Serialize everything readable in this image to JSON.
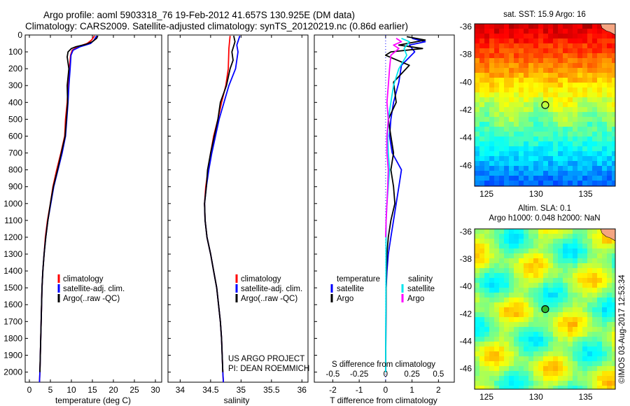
{
  "header": {
    "line1": "Argo profile: aoml 5903318_76 19-Feb-2012 41.657S 130.925E (DM data)",
    "line2": "Climatology: CARS2009. Satellite-adjusted climatology: synTS_20120219.nc (0.86d earlier)"
  },
  "colors": {
    "climatology": "#ff0000",
    "satellite": "#0000ff",
    "argo": "#000000",
    "argo_salinity": "#ff00ff",
    "satellite_salinity": "#00e5ee"
  },
  "legend_profile": {
    "climatology": "climatology",
    "satellite": "satellite-adj. clim.",
    "argo": "Argo(..raw -QC)"
  },
  "legend_diff": {
    "t_head": "temperature",
    "s_head": "salinity",
    "t_sat": "satellite",
    "t_argo": "Argo",
    "s_sat": "satellite",
    "s_argo": "Argo"
  },
  "credits": {
    "project": "US ARGO PROJECT",
    "pi": "PI: DEAN ROEMMICH",
    "stamp": "©IMOS 03-Aug-2017 12:53:34"
  },
  "map_sst": {
    "title": "sat. SST: 15.9 Argo: 16",
    "icon": "sst-heatmap"
  },
  "map_sla": {
    "title1": "Altim. SLA: 0.1",
    "title2": "Argo h1000: 0.048 h2000: NaN",
    "icon": "sla-heatmap"
  },
  "chart_data": [
    {
      "id": "temperature",
      "type": "line",
      "xlabel": "temperature (deg C)",
      "xticks": [
        0,
        5,
        10,
        15,
        20,
        25,
        30
      ],
      "xlim": [
        -1,
        31.5
      ],
      "yticks": [
        0,
        100,
        200,
        300,
        400,
        500,
        600,
        700,
        800,
        900,
        1000,
        1100,
        1200,
        1300,
        1400,
        1500,
        1600,
        1700,
        1800,
        1900,
        2000
      ],
      "ylim": [
        0,
        2060
      ],
      "y_inverted": true,
      "series": [
        {
          "name": "climatology",
          "color": "#ff0000",
          "points": [
            [
              15.5,
              5
            ],
            [
              14.8,
              30
            ],
            [
              13.8,
              50
            ],
            [
              11.5,
              70
            ],
            [
              10.2,
              90
            ],
            [
              9.8,
              120
            ],
            [
              9.5,
              200
            ],
            [
              9.2,
              300
            ],
            [
              9.0,
              400
            ],
            [
              8.6,
              500
            ],
            [
              8.4,
              600
            ],
            [
              7.5,
              700
            ],
            [
              6.5,
              800
            ],
            [
              5.6,
              900
            ],
            [
              5.0,
              1000
            ],
            [
              4.3,
              1100
            ],
            [
              3.8,
              1200
            ],
            [
              3.5,
              1300
            ],
            [
              3.2,
              1400
            ],
            [
              3.0,
              1500
            ],
            [
              2.9,
              1600
            ],
            [
              2.8,
              1700
            ],
            [
              2.7,
              1800
            ],
            [
              2.6,
              1900
            ],
            [
              2.5,
              2000
            ],
            [
              2.4,
              2060
            ]
          ]
        },
        {
          "name": "satellite-adj. clim.",
          "color": "#0000ff",
          "points": [
            [
              16.0,
              5
            ],
            [
              15.4,
              30
            ],
            [
              14.6,
              50
            ],
            [
              12.0,
              70
            ],
            [
              10.4,
              90
            ],
            [
              9.9,
              120
            ],
            [
              9.7,
              200
            ],
            [
              9.4,
              300
            ],
            [
              9.2,
              400
            ],
            [
              8.9,
              500
            ],
            [
              8.6,
              600
            ],
            [
              7.8,
              700
            ],
            [
              6.8,
              800
            ],
            [
              5.8,
              900
            ],
            [
              5.1,
              1000
            ],
            [
              4.4,
              1100
            ],
            [
              3.9,
              1200
            ],
            [
              3.5,
              1300
            ],
            [
              3.2,
              1400
            ],
            [
              3.0,
              1500
            ],
            [
              2.9,
              1600
            ],
            [
              2.8,
              1700
            ],
            [
              2.7,
              1800
            ],
            [
              2.6,
              1900
            ],
            [
              2.5,
              2000
            ],
            [
              2.4,
              2060
            ]
          ]
        },
        {
          "name": "Argo(..raw -QC)",
          "color": "#000000",
          "points": [
            [
              16.3,
              5
            ],
            [
              16.0,
              20
            ],
            [
              15.0,
              40
            ],
            [
              13.5,
              55
            ],
            [
              11.0,
              70
            ],
            [
              10.0,
              80
            ],
            [
              9.2,
              100
            ],
            [
              9.0,
              130
            ],
            [
              9.4,
              200
            ],
            [
              9.0,
              300
            ],
            [
              9.1,
              400
            ],
            [
              8.8,
              500
            ],
            [
              8.5,
              600
            ],
            [
              7.6,
              700
            ],
            [
              6.7,
              800
            ],
            [
              5.7,
              900
            ],
            [
              5.0,
              1000
            ],
            [
              4.4,
              1100
            ],
            [
              3.9,
              1200
            ],
            [
              3.5,
              1300
            ],
            [
              3.2,
              1400
            ],
            [
              3.0,
              1500
            ],
            [
              2.9,
              1600
            ],
            [
              2.8,
              1700
            ],
            [
              2.7,
              1800
            ],
            [
              2.6,
              1900
            ],
            [
              2.5,
              2000
            ]
          ]
        }
      ]
    },
    {
      "id": "salinity",
      "type": "line",
      "xlabel": "salinity",
      "xticks": [
        34,
        34.5,
        35,
        35.5,
        36
      ],
      "xlim": [
        33.8,
        36.1
      ],
      "ylim": [
        0,
        2060
      ],
      "y_inverted": true,
      "series": [
        {
          "name": "climatology",
          "color": "#ff0000",
          "points": [
            [
              34.82,
              5
            ],
            [
              34.8,
              80
            ],
            [
              34.79,
              200
            ],
            [
              34.75,
              300
            ],
            [
              34.68,
              400
            ],
            [
              34.62,
              500
            ],
            [
              34.55,
              600
            ],
            [
              34.5,
              700
            ],
            [
              34.46,
              800
            ],
            [
              34.42,
              900
            ],
            [
              34.4,
              1000
            ],
            [
              34.41,
              1100
            ],
            [
              34.44,
              1200
            ],
            [
              34.5,
              1300
            ],
            [
              34.55,
              1400
            ],
            [
              34.6,
              1500
            ],
            [
              34.63,
              1600
            ],
            [
              34.66,
              1700
            ],
            [
              34.68,
              1800
            ],
            [
              34.69,
              1900
            ],
            [
              34.7,
              2000
            ],
            [
              34.71,
              2060
            ]
          ]
        },
        {
          "name": "satellite-adj. clim.",
          "color": "#0000ff",
          "points": [
            [
              34.98,
              5
            ],
            [
              34.93,
              60
            ],
            [
              34.95,
              100
            ],
            [
              34.91,
              200
            ],
            [
              34.8,
              300
            ],
            [
              34.72,
              400
            ],
            [
              34.64,
              500
            ],
            [
              34.58,
              600
            ],
            [
              34.52,
              700
            ],
            [
              34.47,
              800
            ],
            [
              34.43,
              900
            ],
            [
              34.4,
              1000
            ],
            [
              34.41,
              1100
            ],
            [
              34.44,
              1200
            ],
            [
              34.5,
              1300
            ],
            [
              34.55,
              1400
            ],
            [
              34.6,
              1500
            ],
            [
              34.63,
              1600
            ],
            [
              34.66,
              1700
            ],
            [
              34.68,
              1800
            ],
            [
              34.69,
              1900
            ],
            [
              34.7,
              2000
            ],
            [
              34.71,
              2060
            ]
          ]
        },
        {
          "name": "Argo(..raw -QC)",
          "color": "#000000",
          "points": [
            [
              34.88,
              5
            ],
            [
              34.9,
              40
            ],
            [
              34.85,
              100
            ],
            [
              34.87,
              150
            ],
            [
              34.82,
              200
            ],
            [
              34.76,
              300
            ],
            [
              34.66,
              400
            ],
            [
              34.62,
              500
            ],
            [
              34.56,
              600
            ],
            [
              34.5,
              700
            ],
            [
              34.45,
              800
            ],
            [
              34.43,
              900
            ],
            [
              34.4,
              1000
            ],
            [
              34.41,
              1100
            ],
            [
              34.44,
              1200
            ],
            [
              34.5,
              1300
            ],
            [
              34.55,
              1400
            ],
            [
              34.6,
              1500
            ],
            [
              34.63,
              1600
            ],
            [
              34.66,
              1700
            ],
            [
              34.68,
              1800
            ],
            [
              34.69,
              1900
            ],
            [
              34.7,
              2000
            ]
          ]
        }
      ]
    },
    {
      "id": "difference",
      "type": "line",
      "xlabel": "T difference from climatology",
      "xlabel_top": "S difference from climatology",
      "xticks": [
        -2,
        -1,
        0,
        1,
        2
      ],
      "xticks_top": [
        -0.5,
        -0.25,
        0,
        0.25,
        0.5
      ],
      "xticklabels_top": [
        "-0.5",
        "-0.25",
        "0",
        "0.25",
        "0.5"
      ],
      "xlim": [
        -2.7,
        2.6
      ],
      "ylim": [
        0,
        2060
      ],
      "y_inverted": true,
      "series": [
        {
          "name": "T satellite",
          "color": "#0000ff",
          "points": [
            [
              1.0,
              20
            ],
            [
              1.5,
              40
            ],
            [
              0.9,
              60
            ],
            [
              1.1,
              100
            ],
            [
              0.6,
              180
            ],
            [
              0.5,
              280
            ],
            [
              0.3,
              400
            ],
            [
              0.2,
              500
            ],
            [
              0.15,
              600
            ],
            [
              0.25,
              700
            ],
            [
              0.6,
              800
            ],
            [
              0.5,
              900
            ],
            [
              0.4,
              1000
            ],
            [
              0.3,
              1100
            ],
            [
              0.2,
              1200
            ],
            [
              0.1,
              1300
            ],
            [
              0.05,
              1400
            ],
            [
              0.02,
              1500
            ],
            [
              0.0,
              2000
            ]
          ]
        },
        {
          "name": "T Argo",
          "color": "#000000",
          "points": [
            [
              0.8,
              10
            ],
            [
              1.5,
              30
            ],
            [
              0.5,
              60
            ],
            [
              1.4,
              80
            ],
            [
              0.2,
              100
            ],
            [
              0.0,
              120
            ],
            [
              0.9,
              180
            ],
            [
              0.3,
              280
            ],
            [
              0.4,
              400
            ],
            [
              0.1,
              500
            ],
            [
              0.2,
              600
            ],
            [
              0.3,
              700
            ],
            [
              0.2,
              800
            ],
            [
              0.3,
              900
            ],
            [
              0.35,
              1000
            ],
            [
              0.2,
              1100
            ],
            [
              0.1,
              1200
            ],
            [
              0.05,
              1300
            ],
            [
              0.03,
              1400
            ],
            [
              0.02,
              1500
            ],
            [
              0.0,
              2000
            ]
          ]
        },
        {
          "name": "S satellite",
          "color": "#00e5ee",
          "points": [
            [
              0.6,
              20
            ],
            [
              0.9,
              40
            ],
            [
              0.7,
              80
            ],
            [
              0.8,
              120
            ],
            [
              0.5,
              200
            ],
            [
              0.3,
              300
            ],
            [
              0.2,
              400
            ],
            [
              0.1,
              500
            ],
            [
              0.08,
              600
            ],
            [
              0.1,
              700
            ],
            [
              0.15,
              800
            ],
            [
              0.1,
              900
            ],
            [
              0.05,
              1000
            ],
            [
              0.02,
              1100
            ],
            [
              0.0,
              2000
            ]
          ]
        },
        {
          "name": "S Argo",
          "color": "#ff00ff",
          "points": [
            [
              0.4,
              20
            ],
            [
              0.6,
              40
            ],
            [
              0.3,
              60
            ],
            [
              0.5,
              80
            ],
            [
              0.2,
              120
            ],
            [
              0.15,
              200
            ],
            [
              0.1,
              300
            ],
            [
              0.05,
              400
            ],
            [
              0.1,
              500
            ],
            [
              0.05,
              600
            ],
            [
              0.05,
              700
            ],
            [
              0.1,
              800
            ],
            [
              0.08,
              900
            ],
            [
              0.05,
              1000
            ],
            [
              0.02,
              1100
            ],
            [
              0.0,
              1200
            ]
          ]
        }
      ]
    },
    {
      "id": "sst-map",
      "type": "heatmap",
      "title": "sat. SST: 15.9 Argo: 16",
      "xticks": [
        125,
        130,
        135
      ],
      "yticks": [
        -36,
        -38,
        -40,
        -42,
        -44,
        -46
      ],
      "xlim": [
        123.8,
        138
      ],
      "ylim": [
        -47.5,
        -35.8
      ],
      "argo_point": [
        130.925,
        -41.657
      ]
    },
    {
      "id": "sla-map",
      "type": "heatmap",
      "title": "Altim. SLA: 0.1",
      "xticks": [
        125,
        130,
        135
      ],
      "yticks": [
        -36,
        -38,
        -40,
        -42,
        -44,
        -46
      ],
      "xlim": [
        123.8,
        138
      ],
      "ylim": [
        -47.5,
        -35.8
      ],
      "argo_point": [
        130.925,
        -41.657
      ]
    }
  ]
}
